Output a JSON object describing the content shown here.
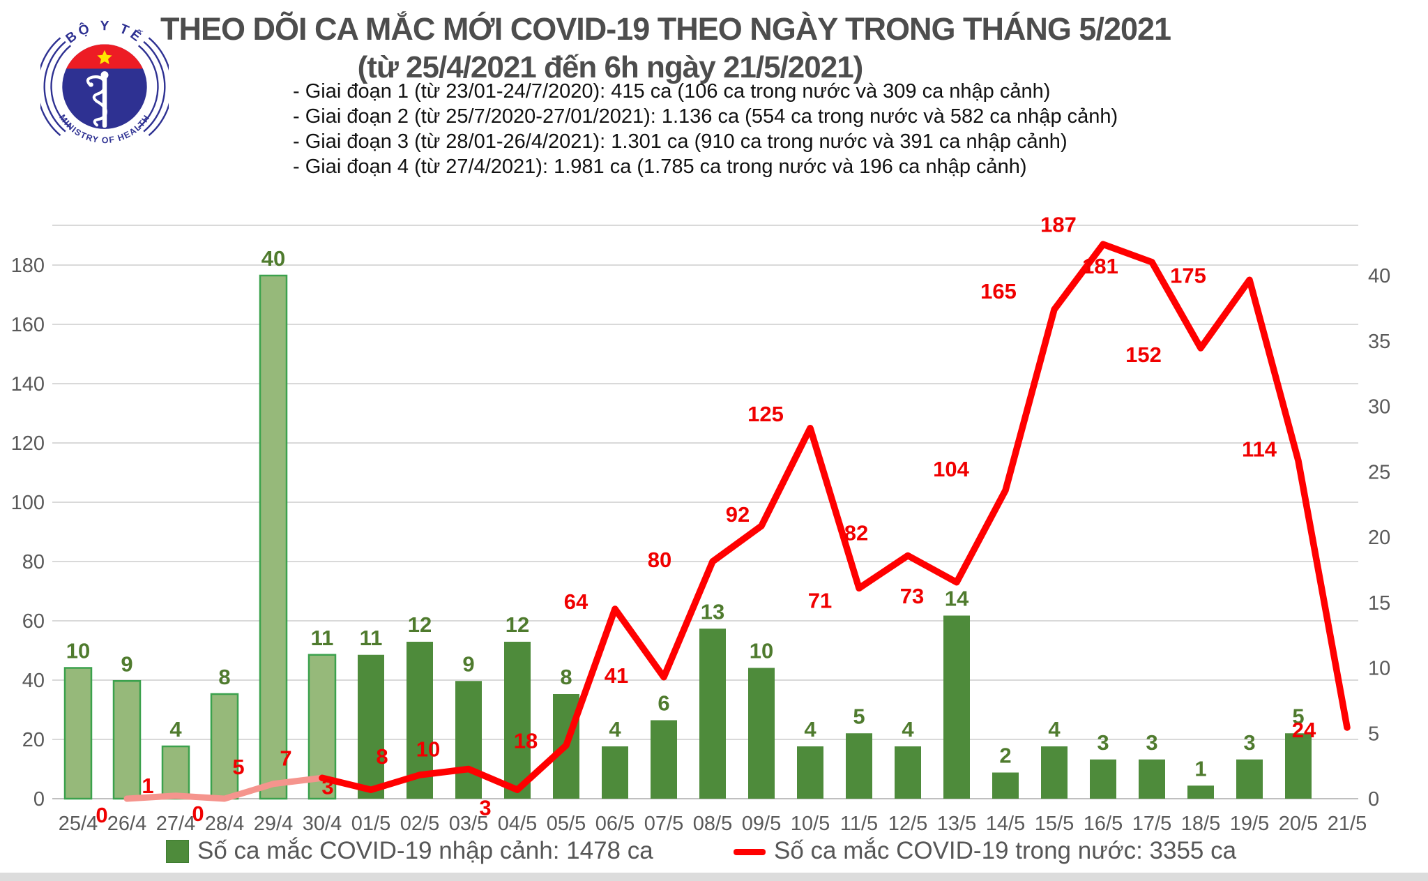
{
  "logo": {
    "arc_top_text": "BỘ Y TẾ",
    "arc_bottom_text": "MINISTRY OF HEALTH"
  },
  "title": {
    "line1": "THEO DÕI CA MẮC MỚI COVID-19 THEO NGÀY TRONG THÁNG 5/2021",
    "line2": "(từ 25/4/2021 đến 6h ngày 21/5/2021)"
  },
  "notes": [
    "- Giai đoạn 1 (từ 23/01-24/7/2020): 415 ca (106 ca trong nước và 309 ca nhập cảnh)",
    "- Giai đoạn 2 (từ 25/7/2020-27/01/2021): 1.136 ca (554 ca trong nước và 582 ca nhập cảnh)",
    "- Giai đoạn 3 (từ 28/01-26/4/2021): 1.301 ca (910 ca trong nước và 391 ca nhập cảnh)",
    "- Giai đoạn 4 (từ 27/4/2021): 1.981 ca (1.785 ca trong nước và 196 ca nhập cảnh)"
  ],
  "legend": [
    {
      "label": "Số ca mắc COVID-19 nhập cảnh: 1478 ca",
      "type": "bar",
      "color": "#4e8b3b"
    },
    {
      "label": "Số ca mắc COVID-19 trong nước: 3355 ca",
      "type": "line",
      "color": "#ff0000"
    }
  ],
  "colors": {
    "bar_may_fill": "#4e8b3b",
    "bar_april_fill": "#96b97a",
    "bar_april_border": "#3ba14d",
    "bar_value_label": "#4f7b2e",
    "line_red": "#ff0000",
    "line_red_early": "#f5948d",
    "line_value_label": "#f00000",
    "axis_text": "#595959",
    "grid_line": "#d9d9d9",
    "axis_line": "#bfbfbf",
    "bottom_strip": "#dcdcdc"
  },
  "chart_data": {
    "type": "bar+line combo",
    "categories": [
      "25/4",
      "26/4",
      "27/4",
      "28/4",
      "29/4",
      "30/4",
      "01/5",
      "02/5",
      "03/5",
      "04/5",
      "05/5",
      "06/5",
      "07/5",
      "08/5",
      "09/5",
      "10/5",
      "11/5",
      "12/5",
      "13/5",
      "14/5",
      "15/5",
      "16/5",
      "17/5",
      "18/5",
      "19/5",
      "20/5",
      "21/5"
    ],
    "series": [
      {
        "name": "Số ca mắc COVID-19 nhập cảnh",
        "type": "bar",
        "axis": "right",
        "values": [
          10,
          9,
          4,
          8,
          40,
          11,
          11,
          12,
          9,
          12,
          8,
          4,
          6,
          13,
          10,
          4,
          5,
          4,
          14,
          2,
          4,
          3,
          3,
          1,
          3,
          5,
          null
        ]
      },
      {
        "name": "Số ca mắc COVID-19 trong nước",
        "type": "line",
        "axis": "left",
        "values": [
          null,
          0,
          1,
          0,
          5,
          7,
          3,
          8,
          10,
          3,
          18,
          64,
          41,
          80,
          92,
          125,
          71,
          82,
          73,
          104,
          165,
          187,
          181,
          152,
          175,
          114,
          24
        ]
      }
    ],
    "early_period_end_index": 5,
    "left_axis": {
      "min": 0,
      "max": 180,
      "step": 20
    },
    "right_axis": {
      "min": 0,
      "max": 40,
      "step": 5
    },
    "grid": true,
    "legend_position": "bottom"
  }
}
